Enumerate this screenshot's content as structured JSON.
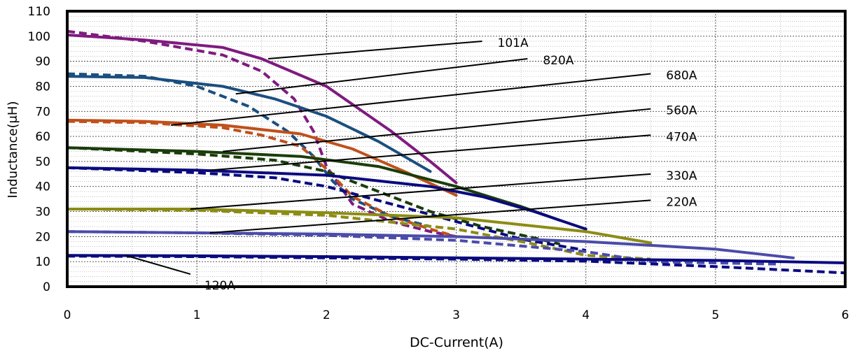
{
  "chart_data": {
    "type": "line",
    "title": "",
    "xlabel": "DC-Current(A)",
    "ylabel": "Inductance(μH)",
    "xlim": [
      0,
      6
    ],
    "ylim": [
      0,
      110
    ],
    "xticks": [
      0,
      1,
      2,
      3,
      4,
      5,
      6
    ],
    "yticks": [
      0,
      10,
      20,
      30,
      40,
      50,
      60,
      70,
      80,
      90,
      100,
      110
    ],
    "grid": true,
    "legend": "none",
    "series": [
      {
        "name": "101A",
        "color": "#7f1a7f",
        "solid": {
          "x": [
            0,
            0.6,
            1.2,
            1.5,
            2.0,
            2.5,
            2.8,
            3.0
          ],
          "y": [
            100.5,
            98.5,
            95.5,
            91,
            80,
            62,
            50,
            41.5
          ]
        },
        "dashed": {
          "x": [
            0,
            0.6,
            1.2,
            1.5,
            1.75,
            1.9,
            2.0,
            2.2,
            2.5,
            2.8,
            3.0
          ],
          "y": [
            102,
            98,
            92.5,
            86,
            75,
            62,
            48,
            33,
            26,
            22,
            20
          ]
        }
      },
      {
        "name": "820A",
        "color": "#1a4f7f",
        "solid": {
          "x": [
            0,
            0.6,
            1.2,
            1.6,
            2.0,
            2.4,
            2.8
          ],
          "y": [
            84,
            83.5,
            80,
            75,
            68,
            58,
            46
          ]
        },
        "dashed": {
          "x": [
            0,
            0.6,
            1.0,
            1.4,
            1.7,
            1.9,
            2.05,
            2.2,
            2.5,
            2.8
          ],
          "y": [
            85,
            84,
            80,
            72,
            62,
            52,
            42,
            35,
            28,
            24
          ]
        }
      },
      {
        "name": "680A",
        "color": "#c0501a",
        "solid": {
          "x": [
            0,
            0.6,
            1.2,
            1.8,
            2.2,
            2.6,
            3.0
          ],
          "y": [
            66.5,
            66,
            64.5,
            61,
            55,
            46,
            36.5
          ]
        },
        "dashed": {
          "x": [
            0,
            0.6,
            1.2,
            1.5,
            1.8,
            2.0,
            2.2,
            2.5,
            2.8,
            3.0
          ],
          "y": [
            66,
            65.5,
            63.5,
            60.5,
            56,
            47,
            36,
            28,
            23,
            20
          ]
        }
      },
      {
        "name": "560A",
        "color": "#1a3d0a",
        "solid": {
          "x": [
            0,
            1.0,
            1.8,
            2.4,
            3.0,
            3.5,
            3.8
          ],
          "y": [
            55.5,
            54,
            52,
            48,
            40,
            32,
            26.5
          ]
        },
        "dashed": {
          "x": [
            0,
            1.0,
            1.6,
            2.0,
            2.4,
            2.8,
            3.2,
            3.6,
            3.8
          ],
          "y": [
            55.5,
            53,
            50.5,
            46,
            38,
            30,
            24,
            19.5,
            17
          ]
        }
      },
      {
        "name": "470A",
        "color": "#0a0a7f",
        "solid": {
          "x": [
            0,
            1.0,
            2.0,
            2.8,
            3.2,
            3.6,
            4.0
          ],
          "y": [
            47.5,
            46.5,
            44.5,
            40,
            36,
            30,
            23
          ]
        },
        "dashed": {
          "x": [
            0,
            1.0,
            1.6,
            2.0,
            2.5,
            3.0,
            3.5,
            4.0
          ],
          "y": [
            47.5,
            45.5,
            43.5,
            40,
            33,
            26,
            19,
            14.5
          ]
        }
      },
      {
        "name": "330A",
        "color": "#8c8c14",
        "solid": {
          "x": [
            0,
            1.0,
            2.0,
            3.0,
            4.0,
            4.5
          ],
          "y": [
            31,
            31,
            29.5,
            27.5,
            22,
            17.5
          ]
        },
        "dashed": {
          "x": [
            0,
            1.0,
            2.0,
            3.0,
            3.6,
            4.0,
            4.5
          ],
          "y": [
            31,
            30.5,
            28.5,
            23,
            17,
            12.5,
            11
          ]
        }
      },
      {
        "name": "220A",
        "color": "#4b4baa",
        "solid": {
          "x": [
            0,
            1.0,
            2.0,
            3.0,
            4.0,
            5.0,
            5.6
          ],
          "y": [
            22,
            21.5,
            21,
            20,
            18,
            15,
            11.5
          ]
        },
        "dashed": {
          "x": [
            0,
            1.0,
            2.0,
            3.0,
            4.0,
            4.5,
            5.5
          ],
          "y": [
            22,
            21.5,
            20.5,
            18.5,
            14,
            10,
            9
          ]
        }
      },
      {
        "name": "120A",
        "color": "#0a0a7f",
        "solid": {
          "x": [
            0,
            1.0,
            2.0,
            3.0,
            4.0,
            5.0,
            6.0
          ],
          "y": [
            12.5,
            12.3,
            12,
            11.5,
            11,
            10.5,
            9.5
          ]
        },
        "dashed": {
          "x": [
            0,
            1.0,
            2.0,
            3.0,
            4.0,
            5.0,
            6.0
          ],
          "y": [
            12.2,
            12,
            11.5,
            11,
            10.2,
            8,
            5.5
          ]
        }
      }
    ],
    "annotations": [
      {
        "text": "101A",
        "line_from": [
          1.55,
          91
        ],
        "line_to": [
          3.2,
          98
        ]
      },
      {
        "text": "820A",
        "line_from": [
          1.3,
          77
        ],
        "line_to": [
          3.55,
          91
        ]
      },
      {
        "text": "680A",
        "line_from": [
          0.8,
          64.5
        ],
        "line_to": [
          4.5,
          85
        ]
      },
      {
        "text": "560A",
        "line_from": [
          1.2,
          54
        ],
        "line_to": [
          4.5,
          71
        ]
      },
      {
        "text": "470A",
        "line_from": [
          1.1,
          46.5
        ],
        "line_to": [
          4.5,
          60.5
        ]
      },
      {
        "text": "330A",
        "line_from": [
          0.95,
          31
        ],
        "line_to": [
          4.5,
          45
        ]
      },
      {
        "text": "220A",
        "line_from": [
          1.1,
          21.5
        ],
        "line_to": [
          4.5,
          34.5
        ]
      },
      {
        "text": "120A",
        "line_from": [
          0.45,
          12.5
        ],
        "line_to": [
          0.95,
          5
        ]
      }
    ]
  }
}
